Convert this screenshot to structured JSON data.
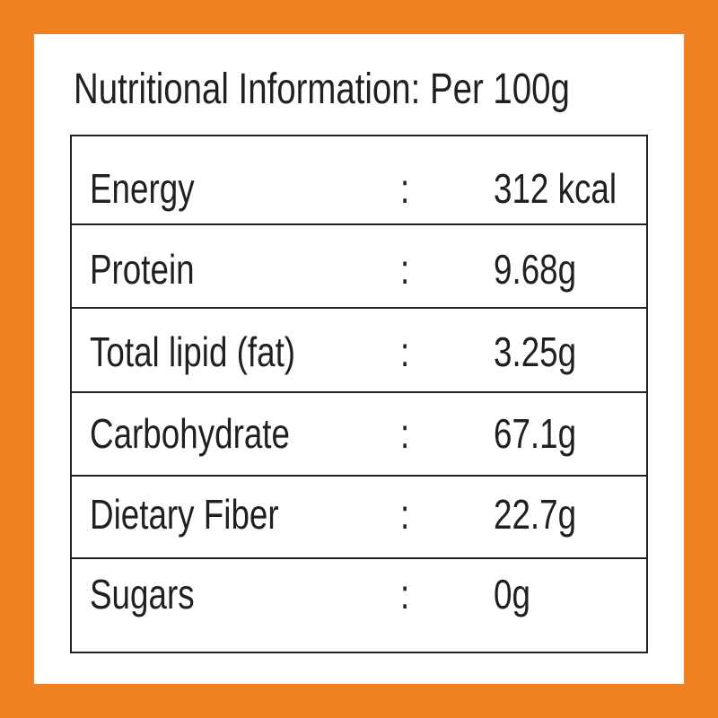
{
  "header": {
    "title": "Nutritional Information: Per 100g"
  },
  "table": {
    "rows": [
      [
        "Energy",
        ":",
        "312 kcal"
      ],
      [
        "Protein",
        ":",
        "9.68g"
      ],
      [
        "Total lipid (fat)",
        ":",
        "3.25g"
      ],
      [
        "Carbohydrate",
        ":",
        "67.1g"
      ],
      [
        "Dietary Fiber",
        ":",
        "22.7g"
      ],
      [
        "Sugars",
        ":",
        "0g"
      ]
    ]
  }
}
